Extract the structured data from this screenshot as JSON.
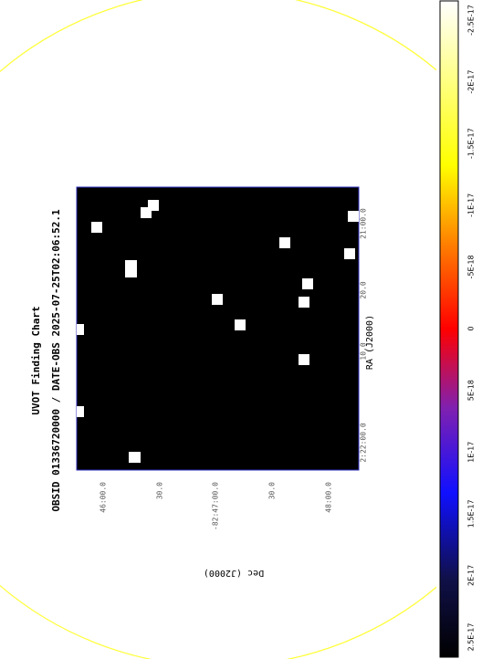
{
  "title": "UVOT Finding Chart",
  "subtitle": "OBSID 01336720000 / DATE-OBS 2025-07-25T02:06:52.1",
  "x_axis": {
    "label": "RA (J2000)",
    "ticks": [
      "2:22:00.0",
      "10.0",
      "20.0",
      "21:00.0"
    ]
  },
  "y_axis": {
    "label": "Dec (J2000)",
    "ticks": [
      "46:00.0",
      "30.0",
      "-82:47:00.0",
      "30.0",
      "48:00.0"
    ]
  },
  "colorbar": {
    "ticks": [
      "-2.5E-17",
      "-2E-17",
      "-1.5E-17",
      "-1E-17",
      "-5E-18",
      "0",
      "5E-18",
      "1E-17",
      "1.5E-17",
      "2E-17",
      "2.5E-17"
    ]
  }
}
